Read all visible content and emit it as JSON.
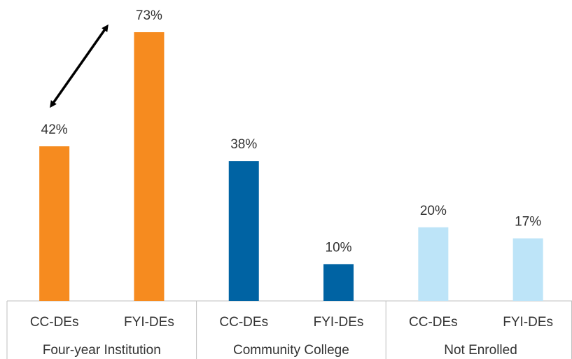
{
  "chart_data": {
    "type": "bar",
    "groups": [
      {
        "name": "Four-year Institution",
        "color": "#f68b1f",
        "categories": [
          "CC-DEs",
          "FYI-DEs"
        ],
        "values": [
          42,
          73
        ],
        "value_labels": [
          "42%",
          "73%"
        ]
      },
      {
        "name": "Community College",
        "color": "#0063a3",
        "categories": [
          "CC-DEs",
          "FYI-DEs"
        ],
        "values": [
          38,
          10
        ],
        "value_labels": [
          "38%",
          "10%"
        ]
      },
      {
        "name": "Not Enrolled",
        "color": "#bde4f8",
        "categories": [
          "CC-DEs",
          "FYI-DEs"
        ],
        "values": [
          20,
          17
        ],
        "value_labels": [
          "20%",
          "17%"
        ]
      }
    ]
  }
}
